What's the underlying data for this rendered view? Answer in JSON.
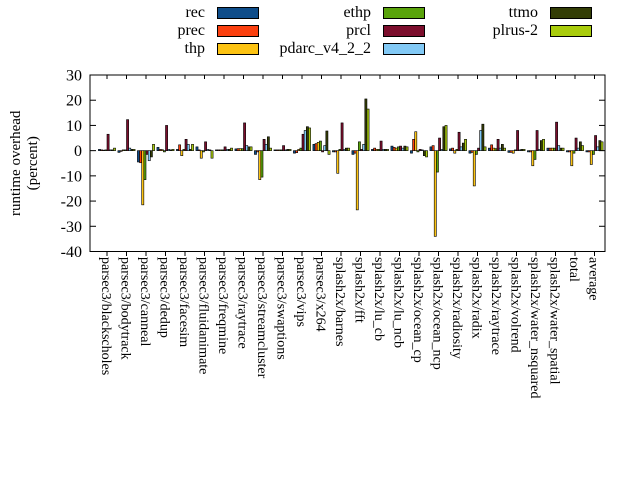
{
  "legend": {
    "columns": [
      [
        "rec",
        "prec",
        "thp"
      ],
      [
        "ethp",
        "prcl",
        "pdarc_v4_2_2"
      ],
      [
        "ttmo",
        "plrus-2"
      ]
    ]
  },
  "chart_data": {
    "type": "bar",
    "title": "",
    "ylabel_lines": [
      "runtime overhead",
      "(percent)"
    ],
    "xlabel": "",
    "ylim": [
      -40,
      30
    ],
    "ytick_step": 10,
    "grid": false,
    "legend_position": "top",
    "categories": [
      "parsec3/blackscholes",
      "parsec3/bodytrack",
      "parsec3/canneal",
      "parsec3/dedup",
      "parsec3/facesim",
      "parsec3/fluidanimate",
      "parsec3/freqmine",
      "parsec3/raytrace",
      "parsec3/streamcluster",
      "parsec3/swaptions",
      "parsec3/vips",
      "parsec3/x264",
      "splash2x/barnes",
      "splash2x/fft",
      "splash2x/lu_cb",
      "splash2x/lu_ncb",
      "splash2x/ocean_cp",
      "splash2x/ocean_ncp",
      "splash2x/radiosity",
      "splash2x/radix",
      "splash2x/raytrace",
      "splash2x/volrend",
      "splash2x/water_nsquared",
      "splash2x/water_spatial",
      "total",
      "average"
    ],
    "series": [
      {
        "name": "rec",
        "color": "#0e4d8a",
        "values": [
          0.5,
          -0.7,
          -4.5,
          1.3,
          0.5,
          1.5,
          0.3,
          0.7,
          -1.5,
          0.3,
          -1.0,
          2.5,
          -0.5,
          -1.5,
          0.5,
          1.8,
          -1.0,
          1.5,
          0.7,
          -1.0,
          1.0,
          -0.7,
          -0.5,
          1.0,
          -0.5,
          -0.5
        ]
      },
      {
        "name": "prec",
        "color": "#fb400f",
        "values": [
          0.3,
          -0.3,
          -4.8,
          0.5,
          2.3,
          0.3,
          0.3,
          0.8,
          -0.5,
          0.3,
          -0.8,
          2.8,
          -0.5,
          -1.0,
          1.0,
          1.3,
          4.5,
          2.0,
          1.0,
          -0.7,
          2.3,
          -0.7,
          -0.5,
          1.0,
          -0.5,
          -0.5
        ]
      },
      {
        "name": "thp",
        "color": "#fcc313",
        "values": [
          0.2,
          0.3,
          -21.5,
          0.4,
          -2.0,
          -3.0,
          0.3,
          0.8,
          -11.5,
          0.3,
          0.5,
          3.3,
          -9.0,
          -23.5,
          0.5,
          1.0,
          7.5,
          -34.0,
          -1.0,
          -14.0,
          1.0,
          -1.0,
          -6.0,
          1.0,
          -6.0,
          -5.5
        ]
      },
      {
        "name": "ethp",
        "color": "#59a30b",
        "values": [
          0.3,
          0.3,
          -11.5,
          -0.5,
          0.5,
          -0.5,
          0.3,
          0.8,
          -10.5,
          0.3,
          1.0,
          3.8,
          0.5,
          3.5,
          0.5,
          1.5,
          -0.5,
          -8.5,
          0.5,
          -1.5,
          0.8,
          0.3,
          -3.5,
          1.0,
          -1.0,
          -1.5
        ]
      },
      {
        "name": "prcl",
        "color": "#7c0e2d",
        "values": [
          6.5,
          12.3,
          -1.5,
          10.0,
          4.5,
          3.5,
          1.5,
          11.0,
          4.5,
          2.0,
          6.5,
          -0.5,
          11.0,
          0.5,
          3.8,
          1.8,
          0.5,
          5.0,
          7.3,
          1.0,
          4.5,
          8.0,
          8.0,
          11.3,
          5.0,
          6.0
        ]
      },
      {
        "name": "pdarc_v4_2_2",
        "color": "#82c9f5",
        "values": [
          0.3,
          1.0,
          -4.0,
          0.5,
          2.5,
          0.5,
          0.5,
          2.0,
          2.5,
          0.3,
          8.0,
          2.0,
          0.5,
          2.5,
          0.5,
          1.0,
          0.3,
          0.5,
          1.5,
          8.0,
          1.0,
          0.3,
          0.5,
          2.0,
          1.0,
          1.5
        ]
      },
      {
        "name": "ttmo",
        "color": "#333d05",
        "values": [
          0.3,
          0.5,
          -2.5,
          0.3,
          0.5,
          0.3,
          0.5,
          1.5,
          5.5,
          0.5,
          9.5,
          7.8,
          1.0,
          20.5,
          0.5,
          1.8,
          -2.0,
          9.5,
          3.0,
          10.5,
          2.5,
          0.5,
          4.0,
          1.0,
          3.5,
          4.0
        ]
      },
      {
        "name": "plrus-2",
        "color": "#a9cc0c",
        "values": [
          1.0,
          0.5,
          2.5,
          0.5,
          2.5,
          -3.0,
          1.0,
          1.5,
          1.0,
          0.5,
          9.0,
          -1.5,
          1.0,
          16.5,
          0.5,
          1.5,
          -2.5,
          10.0,
          4.5,
          1.5,
          1.0,
          0.5,
          4.5,
          1.0,
          2.0,
          3.5
        ]
      }
    ]
  }
}
